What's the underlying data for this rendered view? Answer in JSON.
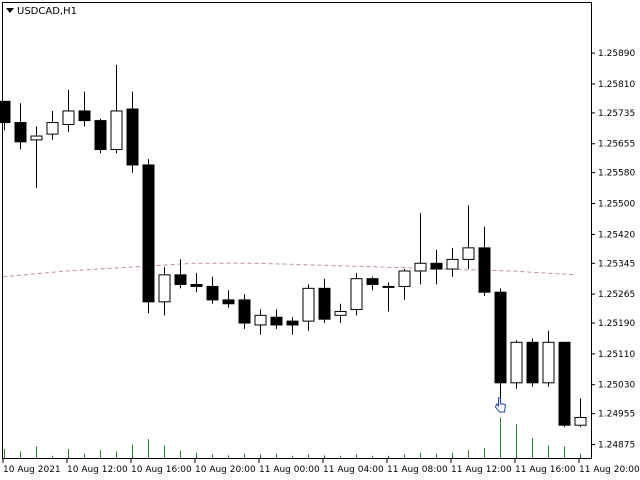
{
  "window": {
    "symbol_label": "USDCAD,H1",
    "dropdown_icon": "triangle-down-icon"
  },
  "chart_data": {
    "type": "candlestick",
    "title": "USDCAD,H1",
    "ylim": [
      1.2484,
      1.2602
    ],
    "y_ticks": [
      "1.25890",
      "1.25810",
      "1.25735",
      "1.25655",
      "1.25580",
      "1.25500",
      "1.25420",
      "1.25345",
      "1.25265",
      "1.25190",
      "1.25110",
      "1.25030",
      "1.24955",
      "1.24875"
    ],
    "x_ticks": [
      "10 Aug 2021",
      "10 Aug 12:00",
      "10 Aug 16:00",
      "10 Aug 20:00",
      "11 Aug 00:00",
      "11 Aug 04:00",
      "11 Aug 08:00",
      "11 Aug 12:00",
      "11 Aug 16:00",
      "11 Aug 20:00"
    ],
    "colors": {
      "bull_body": "#ffffff",
      "bear_body": "#000000",
      "wick": "#000000",
      "volume": "#2e7d32",
      "ma": "#c09090",
      "cursor": "#1f3f9f"
    },
    "candles": [
      {
        "o": 1.25765,
        "h": 1.2576,
        "l": 1.2569,
        "c": 1.2571
      },
      {
        "o": 1.2571,
        "h": 1.2576,
        "l": 1.2564,
        "c": 1.2566
      },
      {
        "o": 1.25665,
        "h": 1.257,
        "l": 1.2554,
        "c": 1.25675
      },
      {
        "o": 1.2568,
        "h": 1.2574,
        "l": 1.25665,
        "c": 1.2571
      },
      {
        "o": 1.25705,
        "h": 1.25795,
        "l": 1.25685,
        "c": 1.2574
      },
      {
        "o": 1.2574,
        "h": 1.2579,
        "l": 1.257,
        "c": 1.25715
      },
      {
        "o": 1.25715,
        "h": 1.2572,
        "l": 1.2563,
        "c": 1.2564
      },
      {
        "o": 1.2564,
        "h": 1.2586,
        "l": 1.2563,
        "c": 1.2574
      },
      {
        "o": 1.25745,
        "h": 1.2579,
        "l": 1.2558,
        "c": 1.256
      },
      {
        "o": 1.256,
        "h": 1.25615,
        "l": 1.25215,
        "c": 1.25245
      },
      {
        "o": 1.25245,
        "h": 1.25335,
        "l": 1.2521,
        "c": 1.25315
      },
      {
        "o": 1.25315,
        "h": 1.25355,
        "l": 1.2528,
        "c": 1.2529
      },
      {
        "o": 1.2529,
        "h": 1.2532,
        "l": 1.2527,
        "c": 1.25285
      },
      {
        "o": 1.25285,
        "h": 1.2531,
        "l": 1.2524,
        "c": 1.2525
      },
      {
        "o": 1.2525,
        "h": 1.25275,
        "l": 1.2523,
        "c": 1.2524
      },
      {
        "o": 1.2525,
        "h": 1.25265,
        "l": 1.25175,
        "c": 1.2519
      },
      {
        "o": 1.25185,
        "h": 1.25225,
        "l": 1.2516,
        "c": 1.2521
      },
      {
        "o": 1.25205,
        "h": 1.25225,
        "l": 1.25175,
        "c": 1.25185
      },
      {
        "o": 1.25195,
        "h": 1.25205,
        "l": 1.2516,
        "c": 1.25185
      },
      {
        "o": 1.25195,
        "h": 1.2529,
        "l": 1.2517,
        "c": 1.2528
      },
      {
        "o": 1.2528,
        "h": 1.25305,
        "l": 1.2519,
        "c": 1.252
      },
      {
        "o": 1.2521,
        "h": 1.2524,
        "l": 1.2519,
        "c": 1.2522
      },
      {
        "o": 1.25225,
        "h": 1.2532,
        "l": 1.2521,
        "c": 1.25305
      },
      {
        "o": 1.25305,
        "h": 1.2531,
        "l": 1.25275,
        "c": 1.2529
      },
      {
        "o": 1.25285,
        "h": 1.25295,
        "l": 1.2522,
        "c": 1.25285
      },
      {
        "o": 1.25285,
        "h": 1.2533,
        "l": 1.2525,
        "c": 1.25325
      },
      {
        "o": 1.25325,
        "h": 1.25475,
        "l": 1.2529,
        "c": 1.25345
      },
      {
        "o": 1.25345,
        "h": 1.2538,
        "l": 1.2529,
        "c": 1.2533
      },
      {
        "o": 1.2533,
        "h": 1.25385,
        "l": 1.2531,
        "c": 1.25355
      },
      {
        "o": 1.25355,
        "h": 1.25495,
        "l": 1.2533,
        "c": 1.25385
      },
      {
        "o": 1.25385,
        "h": 1.2544,
        "l": 1.2526,
        "c": 1.2527
      },
      {
        "o": 1.2527,
        "h": 1.2528,
        "l": 1.24995,
        "c": 1.25035
      },
      {
        "o": 1.25035,
        "h": 1.25145,
        "l": 1.2502,
        "c": 1.2514
      },
      {
        "o": 1.2514,
        "h": 1.2515,
        "l": 1.25025,
        "c": 1.25035
      },
      {
        "o": 1.25035,
        "h": 1.2517,
        "l": 1.25025,
        "c": 1.2514
      },
      {
        "o": 1.2514,
        "h": 1.2514,
        "l": 1.2492,
        "c": 1.24925
      },
      {
        "o": 1.24925,
        "h": 1.24995,
        "l": 1.2492,
        "c": 1.24945
      }
    ],
    "volumes": [
      0.2,
      0.15,
      0.25,
      0.05,
      0.2,
      0.1,
      0.18,
      0.15,
      0.3,
      0.42,
      0.28,
      0.16,
      0.12,
      0.08,
      0.06,
      0.1,
      0.08,
      0.1,
      0.05,
      0.08,
      0.06,
      0.05,
      0.08,
      0.05,
      0.05,
      0.08,
      0.12,
      0.1,
      0.12,
      0.18,
      0.22,
      0.9,
      0.75,
      0.45,
      0.28,
      0.25,
      0.1
    ],
    "ma_y": [
      1.2531,
      1.25325,
      1.25335,
      1.25345,
      1.25345,
      1.2534,
      1.25335,
      1.2533,
      1.25325,
      1.25315
    ],
    "cursor_candle_index": 31
  }
}
